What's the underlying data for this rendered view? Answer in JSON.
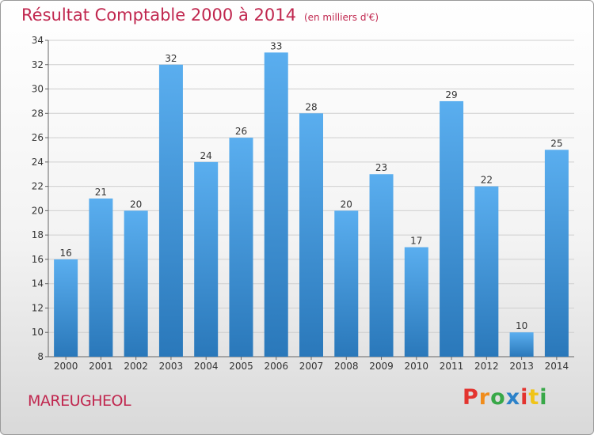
{
  "chart_data": {
    "type": "bar",
    "title": "Résultat Comptable 2000 à 2014",
    "subtitle": "(en milliers d'€)",
    "categories": [
      "2000",
      "2001",
      "2002",
      "2003",
      "2004",
      "2005",
      "2006",
      "2007",
      "2008",
      "2009",
      "2010",
      "2011",
      "2012",
      "2013",
      "2014"
    ],
    "values": [
      16,
      21,
      20,
      32,
      24,
      26,
      33,
      28,
      20,
      23,
      17,
      29,
      22,
      10,
      25
    ],
    "ylim": [
      8,
      34
    ],
    "yticks": [
      8,
      10,
      12,
      14,
      16,
      18,
      20,
      22,
      24,
      26,
      28,
      30,
      32,
      34
    ],
    "xlabel": "",
    "ylabel": "",
    "grid": true,
    "bar_color": "#4a9be0"
  },
  "footer": {
    "town": "MAREUGHEOL",
    "logo": "Proxiti"
  },
  "colors": {
    "accent": "#c0264e",
    "bar": "#4a9be0"
  }
}
